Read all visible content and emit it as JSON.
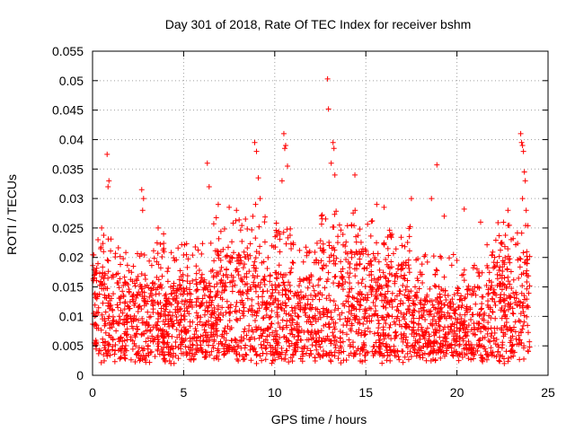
{
  "chart_data": {
    "type": "scatter",
    "title": "Day 301 of 2018, Rate Of TEC Index for receiver bshm",
    "xlabel": "GPS time / hours",
    "ylabel": "ROTI / TECUs",
    "xlim": [
      0,
      25
    ],
    "ylim": [
      0,
      0.055
    ],
    "xticks": [
      0,
      5,
      10,
      15,
      20,
      25
    ],
    "yticks": [
      0,
      0.005,
      0.01,
      0.015,
      0.02,
      0.025,
      0.03,
      0.035,
      0.04,
      0.045,
      0.05,
      0.055
    ],
    "xtick_labels": [
      "0",
      "5",
      "10",
      "15",
      "20",
      "25"
    ],
    "ytick_labels": [
      "0",
      "0.005",
      "0.01",
      "0.015",
      "0.02",
      "0.025",
      "0.03",
      "0.035",
      "0.04",
      "0.045",
      "0.05",
      "0.055"
    ],
    "grid": true,
    "marker": "+",
    "marker_color": "#ff0000",
    "series": [
      {
        "name": "ROTI",
        "color": "#ff0000",
        "note": "dense cloud of samples from 0 to 24 h, mostly 0.003-0.02 TECU/min",
        "points": [
          [
            0.8,
            0.0375
          ],
          [
            0.9,
            0.033
          ],
          [
            0.85,
            0.032
          ],
          [
            0.5,
            0.025
          ],
          [
            0.3,
            0.023
          ],
          [
            2.7,
            0.0315
          ],
          [
            2.8,
            0.03
          ],
          [
            2.75,
            0.028
          ],
          [
            3.6,
            0.025
          ],
          [
            3.9,
            0.024
          ],
          [
            6.3,
            0.036
          ],
          [
            6.4,
            0.032
          ],
          [
            6.9,
            0.029
          ],
          [
            7.5,
            0.0285
          ],
          [
            7.9,
            0.028
          ],
          [
            8.9,
            0.0395
          ],
          [
            9.0,
            0.038
          ],
          [
            9.1,
            0.0335
          ],
          [
            9.2,
            0.03
          ],
          [
            8.95,
            0.029
          ],
          [
            10.5,
            0.041
          ],
          [
            10.6,
            0.039
          ],
          [
            10.55,
            0.0385
          ],
          [
            10.7,
            0.0355
          ],
          [
            10.4,
            0.033
          ],
          [
            12.9,
            0.0503
          ],
          [
            12.95,
            0.0452
          ],
          [
            13.2,
            0.0395
          ],
          [
            13.25,
            0.0385
          ],
          [
            13.1,
            0.036
          ],
          [
            13.3,
            0.034
          ],
          [
            14.4,
            0.034
          ],
          [
            15.6,
            0.029
          ],
          [
            16.0,
            0.0285
          ],
          [
            17.5,
            0.03
          ],
          [
            18.6,
            0.03
          ],
          [
            18.9,
            0.0357
          ],
          [
            19.3,
            0.027
          ],
          [
            20.4,
            0.0282
          ],
          [
            21.3,
            0.026
          ],
          [
            22.8,
            0.028
          ],
          [
            23.5,
            0.041
          ],
          [
            23.55,
            0.0395
          ],
          [
            23.6,
            0.039
          ],
          [
            23.65,
            0.038
          ],
          [
            23.7,
            0.0345
          ],
          [
            23.75,
            0.033
          ],
          [
            23.6,
            0.03
          ],
          [
            23.8,
            0.028
          ],
          [
            0.1,
            0.0055
          ],
          [
            4.3,
            0.002
          ],
          [
            9.0,
            0.002
          ],
          [
            20.1,
            0.0025
          ],
          [
            22.3,
            0.0025
          ],
          [
            22.6,
            0.002
          ]
        ]
      }
    ]
  }
}
